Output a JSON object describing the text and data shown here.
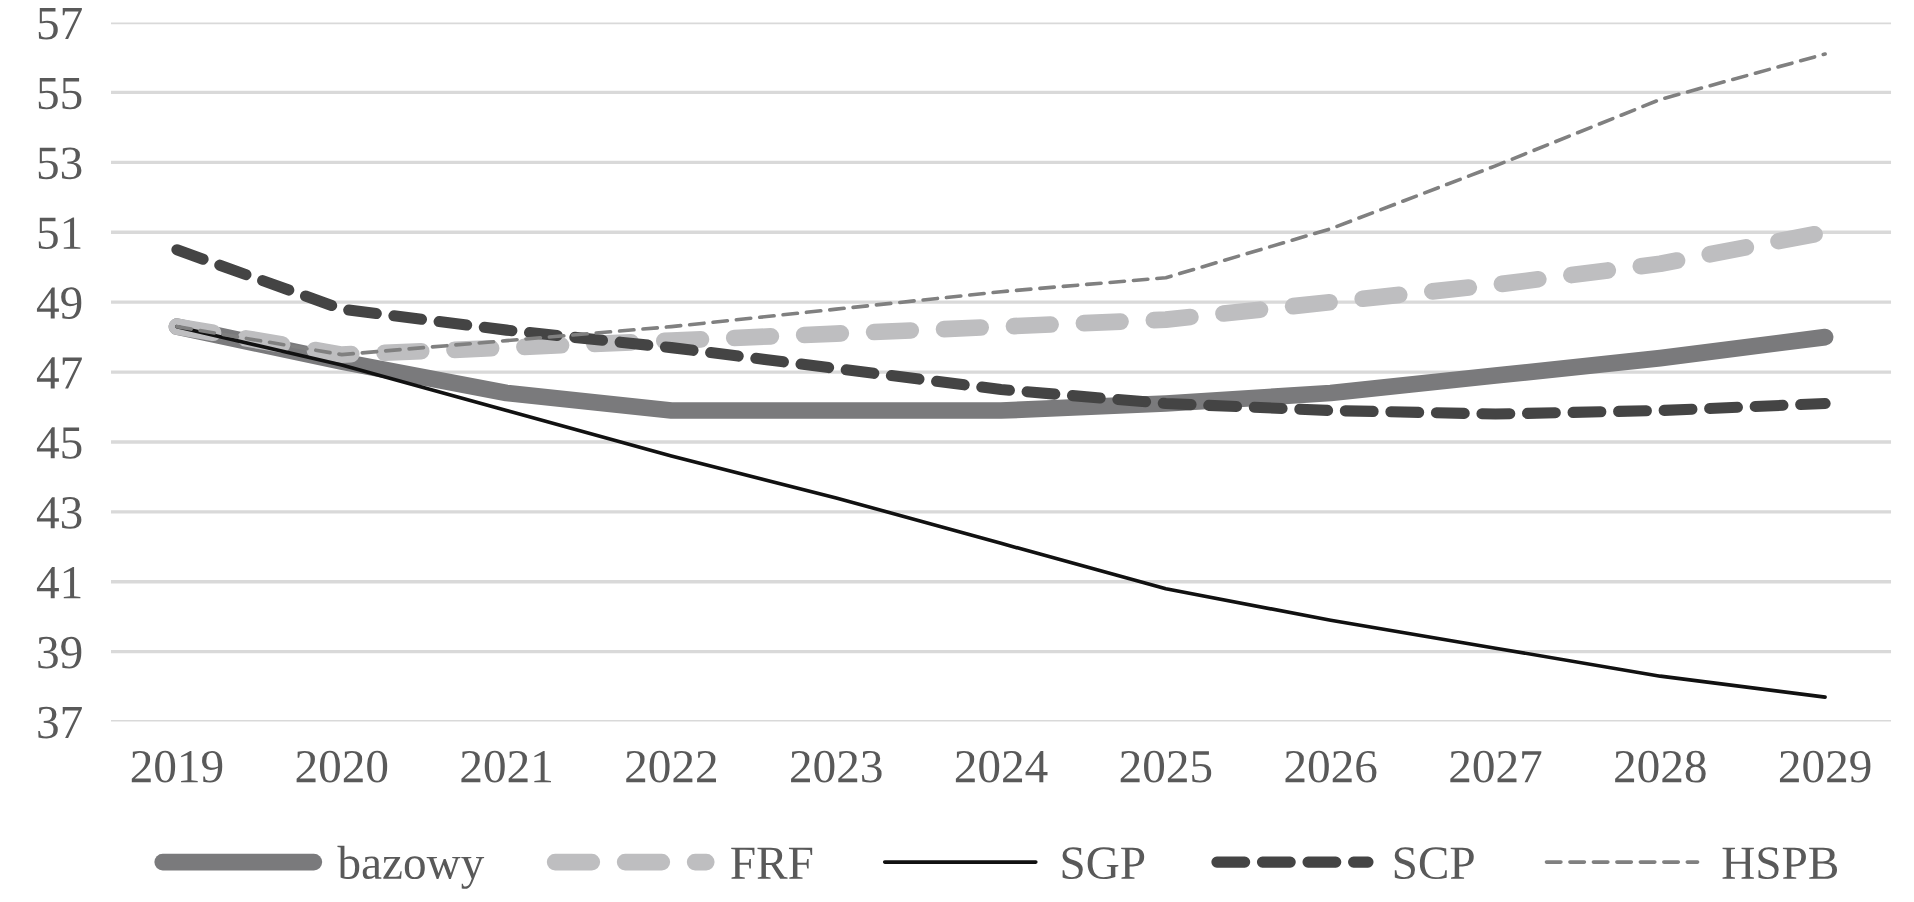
{
  "chart_data": {
    "type": "line",
    "categories": [
      "2019",
      "2020",
      "2021",
      "2022",
      "2023",
      "2024",
      "2025",
      "2026",
      "2027",
      "2028",
      "2029"
    ],
    "series": [
      {
        "name": "bazowy",
        "color": "#7a7a7c",
        "line_style": "solid",
        "values": [
          48.3,
          47.3,
          46.4,
          45.9,
          45.9,
          45.9,
          46.1,
          46.4,
          46.9,
          47.4,
          48.0
        ]
      },
      {
        "name": "FRF",
        "color": "#bebec0",
        "line_style": "dashed",
        "values": [
          48.3,
          47.5,
          47.7,
          47.9,
          48.1,
          48.3,
          48.5,
          49.0,
          49.5,
          50.1,
          51.0
        ]
      },
      {
        "name": "SGP",
        "color": "#111111",
        "line_style": "solid",
        "values": [
          48.3,
          47.2,
          45.9,
          44.6,
          43.4,
          42.1,
          40.8,
          39.9,
          39.1,
          38.3,
          37.7
        ]
      },
      {
        "name": "SCP",
        "color": "#444444",
        "line_style": "dashed",
        "values": [
          50.5,
          48.8,
          48.2,
          47.7,
          47.1,
          46.5,
          46.1,
          45.9,
          45.8,
          45.9,
          46.1
        ]
      },
      {
        "name": "HSPB",
        "color": "#808080",
        "line_style": "dashed",
        "values": [
          48.3,
          47.5,
          47.9,
          48.3,
          48.8,
          49.3,
          49.7,
          51.1,
          52.9,
          54.8,
          56.1
        ]
      }
    ],
    "ylim": [
      37,
      57
    ],
    "yticks": [
      37,
      39,
      41,
      43,
      45,
      47,
      49,
      51,
      53,
      55,
      57
    ],
    "grid": "y",
    "legend": "bottom",
    "marker": "none"
  }
}
